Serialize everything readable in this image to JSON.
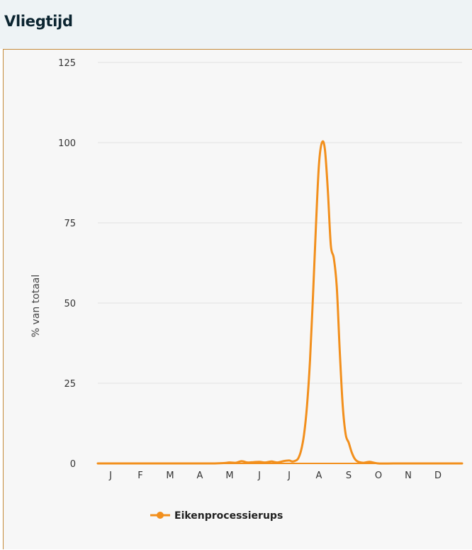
{
  "header": {
    "title": "Vliegtijd"
  },
  "chart_data": {
    "type": "line",
    "title": "",
    "xlabel": "",
    "ylabel": "% van totaal",
    "ylim": [
      0,
      125
    ],
    "yticks": [
      "0",
      "25",
      "50",
      "75",
      "100",
      "125"
    ],
    "categories": [
      "J",
      "F",
      "M",
      "A",
      "M",
      "J",
      "J",
      "A",
      "S",
      "O",
      "N",
      "D"
    ],
    "grid": true,
    "legend_position": "bottom",
    "color": "#f28f1c",
    "series": [
      {
        "name": "Eikenprocessierups",
        "x": [
          0,
          0.5,
          1,
          1.5,
          2,
          2.5,
          3,
          3.5,
          3.8,
          4.0,
          4.2,
          4.4,
          4.6,
          4.8,
          5.0,
          5.2,
          5.4,
          5.6,
          5.8,
          6.0,
          6.1,
          6.2,
          6.3,
          6.4,
          6.5,
          6.6,
          6.7,
          6.8,
          6.9,
          7.0,
          7.1,
          7.2,
          7.3,
          7.4,
          7.5,
          7.6,
          7.7,
          7.8,
          7.9,
          8.0,
          8.1,
          8.2,
          8.3,
          8.5,
          8.7,
          9.0,
          9.5,
          10,
          10.5,
          11
        ],
        "y": [
          0,
          0,
          0,
          0,
          0,
          0,
          0,
          0,
          0.1,
          0.3,
          0.2,
          0.7,
          0.3,
          0.4,
          0.5,
          0.3,
          0.6,
          0.3,
          0.7,
          0.9,
          0.6,
          0.8,
          1.5,
          4,
          9,
          18,
          32,
          52,
          74,
          93,
          100,
          98,
          85,
          68,
          64,
          55,
          35,
          18,
          9,
          6.5,
          3.5,
          1.5,
          0.6,
          0.2,
          0.5,
          0,
          0,
          0,
          0,
          0
        ]
      }
    ]
  }
}
